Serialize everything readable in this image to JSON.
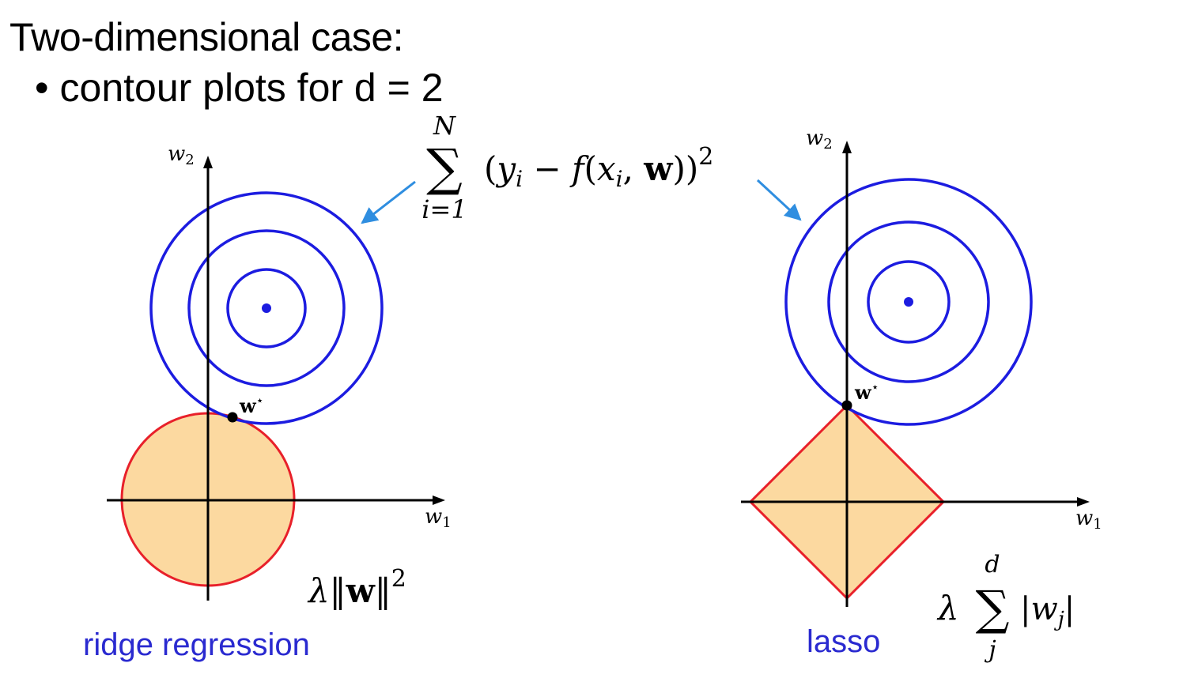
{
  "heading": "Two-dimensional case:",
  "bullet": {
    "symbol": "•",
    "text": "contour plots for d = 2"
  },
  "objective": {
    "upper_limit": "N",
    "sum_symbol": "∑",
    "lower_limit": "i=1",
    "body_open": "(",
    "y_var": "y",
    "y_sub": "i",
    "minus": " − ",
    "f_text": "f",
    "args_open": "(",
    "x_var": "x",
    "x_sub": "i",
    "comma": ", ",
    "w_bold": "w",
    "args_close": "))",
    "power": "2"
  },
  "ridge": {
    "w2_label": "w",
    "w2_sub": "2",
    "w1_label": "w",
    "w1_sub": "1",
    "optimum_label": "w",
    "optimum_star": "⋆",
    "penalty": {
      "lambda": "λ",
      "norm_open": "‖",
      "w_bold": "w",
      "norm_close": "‖",
      "power": "2"
    },
    "caption": "ridge regression"
  },
  "lasso": {
    "w2_label": "w",
    "w2_sub": "2",
    "w1_label": "w",
    "w1_sub": "1",
    "optimum_label": "w",
    "optimum_star": "⋆",
    "penalty": {
      "lambda": "λ",
      "sum_symbol": "∑",
      "upper_limit": "d",
      "lower_limit": "j",
      "abs_open": "|",
      "w_var": "w",
      "w_sub": "j",
      "abs_close": "|"
    },
    "caption": "lasso"
  },
  "colors": {
    "contour": "#1c1ce0",
    "constraint_stroke": "#e8202a",
    "constraint_fill": "#fcd9a0",
    "arrow": "#2f8ee0",
    "axis": "#000000",
    "caption": "#2a2ad0"
  }
}
